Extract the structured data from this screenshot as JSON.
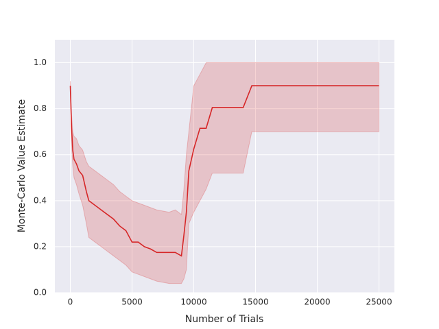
{
  "chart_data": {
    "type": "line",
    "xlabel": "Number of Trials",
    "ylabel": "Monte-Carlo Value Estimate",
    "x": [
      0,
      100,
      200,
      300,
      500,
      700,
      1000,
      1300,
      1500,
      2000,
      2500,
      3000,
      3500,
      4000,
      4500,
      5000,
      5500,
      6000,
      6500,
      7000,
      8000,
      8500,
      9000,
      9200,
      9400,
      9600,
      10000,
      10500,
      11000,
      11500,
      12500,
      14000,
      14700,
      20000,
      25000
    ],
    "series": [
      {
        "color": "#d62728",
        "values": [
          0.9,
          0.72,
          0.62,
          0.58,
          0.56,
          0.53,
          0.51,
          0.44,
          0.4,
          0.38,
          0.36,
          0.34,
          0.32,
          0.29,
          0.27,
          0.22,
          0.22,
          0.2,
          0.19,
          0.175,
          0.175,
          0.175,
          0.16,
          0.25,
          0.35,
          0.53,
          0.625,
          0.715,
          0.715,
          0.805,
          0.805,
          0.805,
          0.9,
          0.9,
          0.9
        ],
        "lower": [
          0.9,
          0.65,
          0.55,
          0.5,
          0.47,
          0.43,
          0.38,
          0.3,
          0.24,
          0.22,
          0.2,
          0.18,
          0.16,
          0.14,
          0.12,
          0.09,
          0.08,
          0.07,
          0.06,
          0.05,
          0.04,
          0.04,
          0.04,
          0.06,
          0.1,
          0.3,
          0.35,
          0.4,
          0.45,
          0.52,
          0.52,
          0.52,
          0.7,
          0.7,
          0.7
        ],
        "upper": [
          0.92,
          0.78,
          0.7,
          0.68,
          0.67,
          0.64,
          0.62,
          0.57,
          0.55,
          0.53,
          0.51,
          0.49,
          0.47,
          0.44,
          0.42,
          0.4,
          0.39,
          0.38,
          0.37,
          0.36,
          0.35,
          0.36,
          0.34,
          0.45,
          0.6,
          0.7,
          0.9,
          0.95,
          1.0,
          1.0,
          1.0,
          1.0,
          1.0,
          1.0,
          1.0
        ]
      }
    ],
    "xlim": [
      -1250,
      26250
    ],
    "xticks": [
      0,
      5000,
      10000,
      15000,
      20000,
      25000
    ],
    "ylim": [
      0,
      1.1
    ],
    "yticks": [
      {
        "value": 0,
        "label": "0.0"
      },
      0.2,
      0.4,
      0.6,
      0.8,
      {
        "value": 1,
        "label": "1.0"
      }
    ],
    "grid": true
  }
}
